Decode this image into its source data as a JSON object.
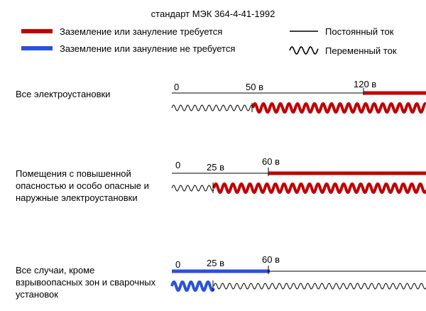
{
  "title": "стандарт МЭК 364-4-41-1992",
  "legend": {
    "required": "Заземление или зануление требуется",
    "not_required": "Заземление или зануление не требуется",
    "dc": "Постоянный ток",
    "ac": "Переменный ток"
  },
  "colors": {
    "required": "#c00000",
    "not_required": "#2a52d9",
    "base": "#000000"
  },
  "rows": [
    {
      "label": "Все электроустановки",
      "ticks": [
        "0",
        "50 в",
        "120 в"
      ]
    },
    {
      "label": "Помещения с повышенной\nопасностью и особо опасные и\nнаружные электроустановки",
      "ticks": [
        "0",
        "25 в",
        "60 в"
      ]
    },
    {
      "label": "Все случаи, кроме\nвзрывоопасных зон и сварочных\nустановок",
      "ticks": [
        "0",
        "25 в",
        "60 в"
      ]
    }
  ]
}
